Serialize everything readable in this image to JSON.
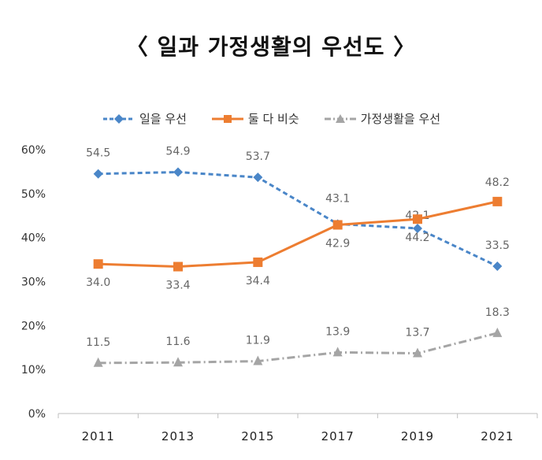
{
  "chart_data": {
    "type": "line",
    "title": "〈 일과 가정생활의 우선도 〉",
    "categories": [
      "2011",
      "2013",
      "2015",
      "2017",
      "2019",
      "2021"
    ],
    "ylim": [
      0,
      60
    ],
    "yticks": [
      "0%",
      "10%",
      "20%",
      "30%",
      "40%",
      "50%",
      "60%"
    ],
    "grid": false,
    "legend": "top-center",
    "series": [
      {
        "name": "일을 우선",
        "values": [
          54.5,
          54.9,
          53.7,
          43.1,
          42.1,
          33.5
        ],
        "labels": [
          "54.5",
          "54.9",
          "53.7",
          "43.1",
          "42.1",
          "33.5"
        ],
        "color": "#4a86c8",
        "marker": "diamond",
        "style": "dashed"
      },
      {
        "name": "둘 다 비슷",
        "values": [
          34.0,
          33.4,
          34.4,
          42.9,
          44.2,
          48.2
        ],
        "labels": [
          "34.0",
          "33.4",
          "34.4",
          "42.9",
          "44.2",
          "48.2"
        ],
        "color": "#ed7d31",
        "marker": "square",
        "style": "solid"
      },
      {
        "name": "가정생활을 우선",
        "values": [
          11.5,
          11.6,
          11.9,
          13.9,
          13.7,
          18.3
        ],
        "labels": [
          "11.5",
          "11.6",
          "11.9",
          "13.9",
          "13.7",
          "18.3"
        ],
        "color": "#a5a5a5",
        "marker": "triangle",
        "style": "dashdot"
      }
    ]
  }
}
